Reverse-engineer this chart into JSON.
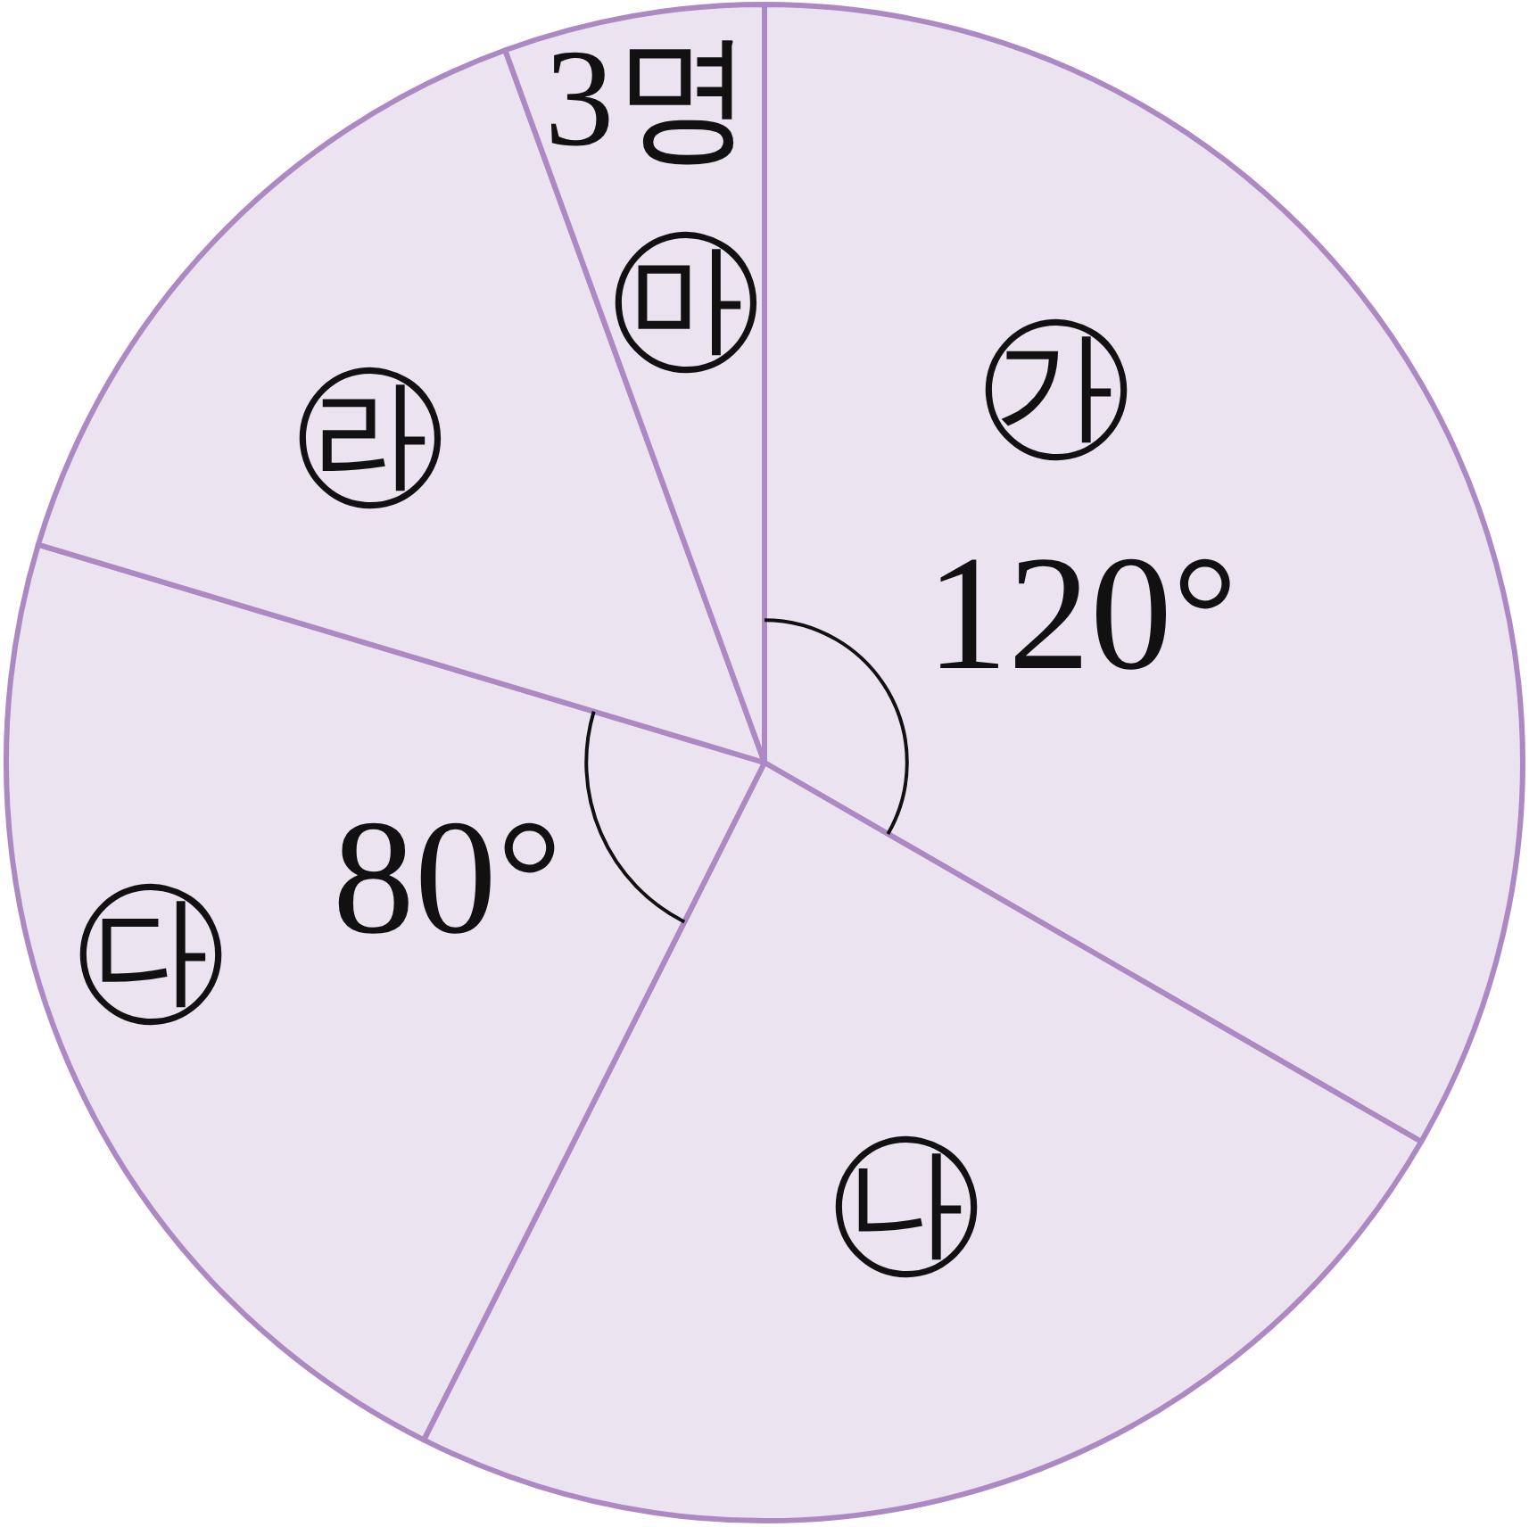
{
  "chart_data": {
    "type": "pie",
    "categories": [
      "㉮",
      "㉯",
      "㉰",
      "㉱",
      "㉲"
    ],
    "values": [
      120,
      86.7,
      80,
      53.3,
      20
    ],
    "value_labels": [
      "120°",
      null,
      "80°",
      null,
      null
    ],
    "annotations": [
      "3명"
    ],
    "colors": [
      "#ebe3f0",
      "#ebe3f0",
      "#ebe3f0",
      "#ebe3f0",
      "#ebe3f0"
    ],
    "legend": false
  }
}
